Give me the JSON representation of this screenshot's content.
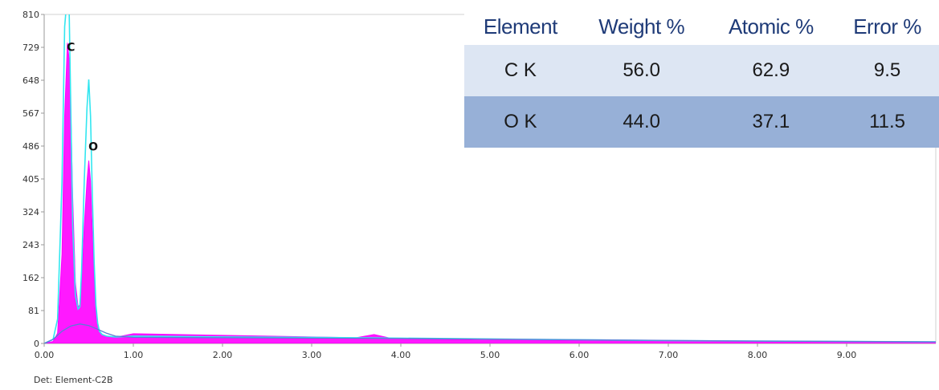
{
  "chart_data": {
    "type": "line",
    "detector_label": "Det: Element-C2B",
    "x_ticks": [
      "0.00",
      "1.00",
      "2.00",
      "3.00",
      "4.00",
      "5.00",
      "6.00",
      "7.00",
      "8.00",
      "9.00"
    ],
    "y_ticks": [
      "0",
      "81",
      "162",
      "243",
      "324",
      "405",
      "486",
      "567",
      "648",
      "729",
      "810"
    ],
    "xlim": [
      0,
      10
    ],
    "ylim": [
      0,
      810
    ],
    "grid": false,
    "series": [
      {
        "color": "#ff00ff",
        "x": [
          0.0,
          0.1,
          0.15,
          0.2,
          0.23,
          0.26,
          0.28,
          0.3,
          0.32,
          0.35,
          0.38,
          0.4,
          0.42,
          0.45,
          0.48,
          0.5,
          0.52,
          0.54,
          0.56,
          0.58,
          0.6,
          0.62,
          0.65,
          0.7,
          0.8,
          1.0,
          1.5,
          2.0,
          2.5,
          3.0,
          3.5,
          3.7,
          3.9,
          4.5,
          5.0,
          6.0,
          7.0,
          8.0,
          9.0,
          10.0
        ],
        "y": [
          0,
          5,
          25,
          220,
          560,
          740,
          700,
          560,
          360,
          150,
          90,
          95,
          150,
          290,
          400,
          450,
          400,
          280,
          160,
          80,
          45,
          30,
          22,
          18,
          15,
          24,
          22,
          20,
          18,
          16,
          14,
          22,
          12,
          10,
          8,
          7,
          6,
          5,
          4,
          3
        ]
      },
      {
        "color": "#33e6f0",
        "x": [
          0.0,
          0.1,
          0.15,
          0.2,
          0.23,
          0.26,
          0.28,
          0.3,
          0.32,
          0.35,
          0.38,
          0.4,
          0.42,
          0.45,
          0.48,
          0.5,
          0.52,
          0.54,
          0.56,
          0.58,
          0.6,
          0.62,
          0.65,
          0.7,
          0.8,
          1.0,
          2.0,
          3.0,
          4.0,
          5.0,
          6.0,
          7.0,
          8.0,
          9.0,
          10.0
        ],
        "y": [
          0,
          10,
          60,
          400,
          780,
          860,
          820,
          560,
          290,
          120,
          85,
          90,
          180,
          400,
          580,
          650,
          560,
          370,
          200,
          95,
          50,
          30,
          22,
          18,
          16,
          18,
          16,
          15,
          13,
          11,
          9,
          7,
          6,
          5,
          4
        ]
      },
      {
        "color": "#5b7bd5",
        "x": [
          0.0,
          0.1,
          0.2,
          0.3,
          0.4,
          0.5,
          0.6,
          0.7,
          0.8,
          1.0,
          2.0,
          4.0,
          6.0,
          8.0,
          10.0
        ],
        "y": [
          0,
          10,
          30,
          43,
          48,
          44,
          35,
          25,
          18,
          15,
          14,
          12,
          9,
          6,
          4
        ]
      }
    ],
    "annotations": [
      {
        "text": "C",
        "x": 0.3,
        "y": 720
      },
      {
        "text": "O",
        "x": 0.55,
        "y": 475
      }
    ]
  },
  "table": {
    "headers": [
      "Element",
      "Weight %",
      "Atomic %",
      "Error %"
    ],
    "rows": [
      [
        "C K",
        "56.0",
        "62.9",
        "9.5"
      ],
      [
        "O K",
        "44.0",
        "37.1",
        "11.5"
      ]
    ]
  }
}
